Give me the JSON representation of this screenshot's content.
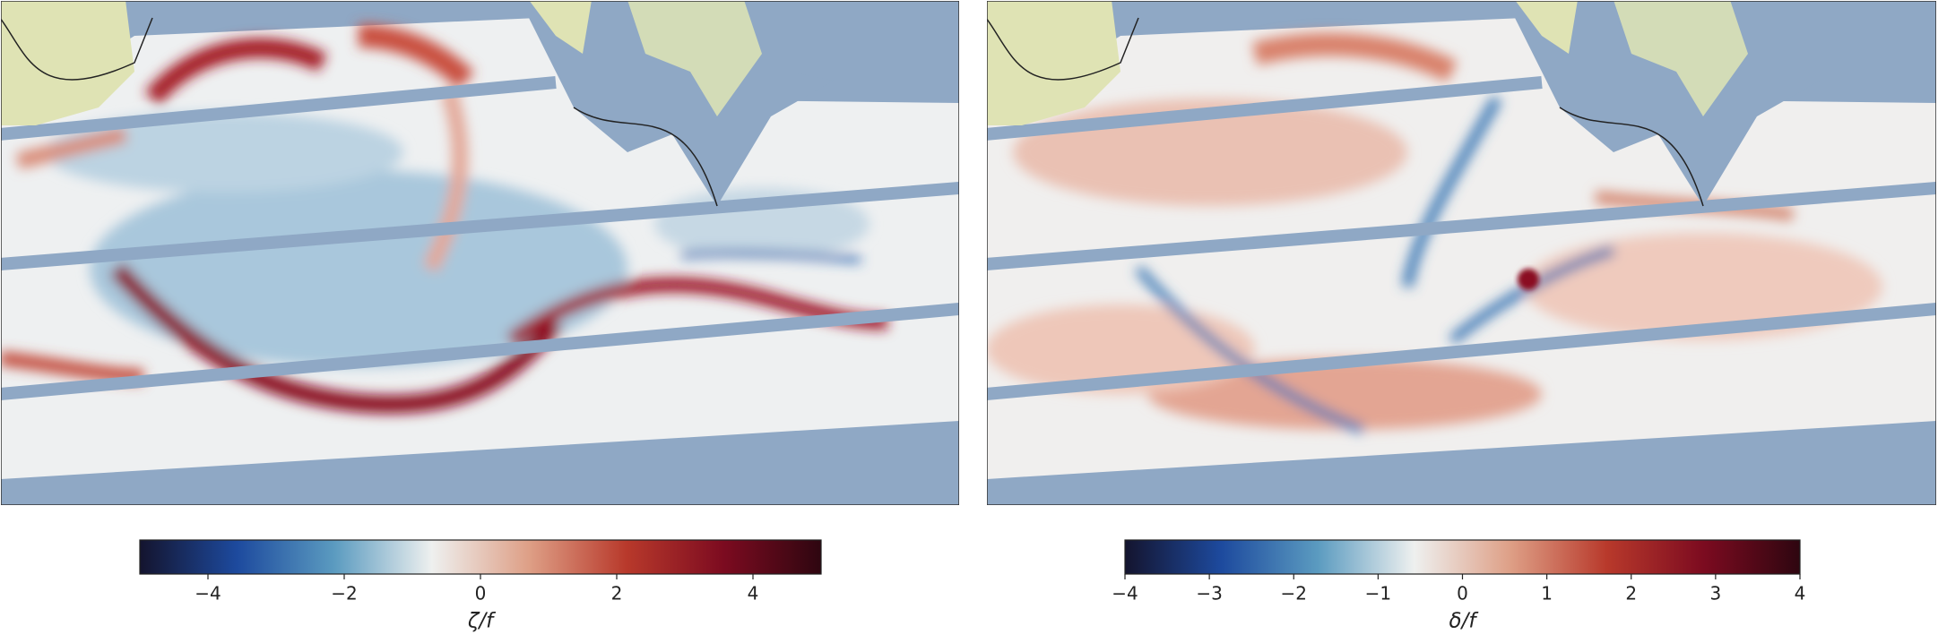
{
  "chart_data": [
    {
      "type": "colorbar",
      "label": "ζ/f",
      "clim": [
        -5,
        5
      ],
      "cticks": [
        {
          "value": -4,
          "label": "−4"
        },
        {
          "value": -2,
          "label": "−2"
        },
        0,
        2,
        4
      ],
      "colors": [
        "#14142e",
        "#1d4a9e",
        "#5b9bc0",
        "#eef0ef",
        "#de9f86",
        "#b8392b",
        "#7c0b20",
        "#2e0610"
      ]
    },
    {
      "type": "colorbar",
      "label": "δ/f",
      "clim": [
        -4,
        4
      ],
      "cticks": [
        {
          "value": -4,
          "label": "−4"
        },
        {
          "value": -3,
          "label": "−3"
        },
        {
          "value": -2,
          "label": "−2"
        },
        {
          "value": -1,
          "label": "−1"
        },
        0,
        1,
        2,
        3,
        4
      ],
      "colors": [
        "#14142e",
        "#1d4a9e",
        "#5b9bc0",
        "#eef0ef",
        "#de9f86",
        "#b8392b",
        "#7c0b20",
        "#2e0610"
      ]
    }
  ]
}
